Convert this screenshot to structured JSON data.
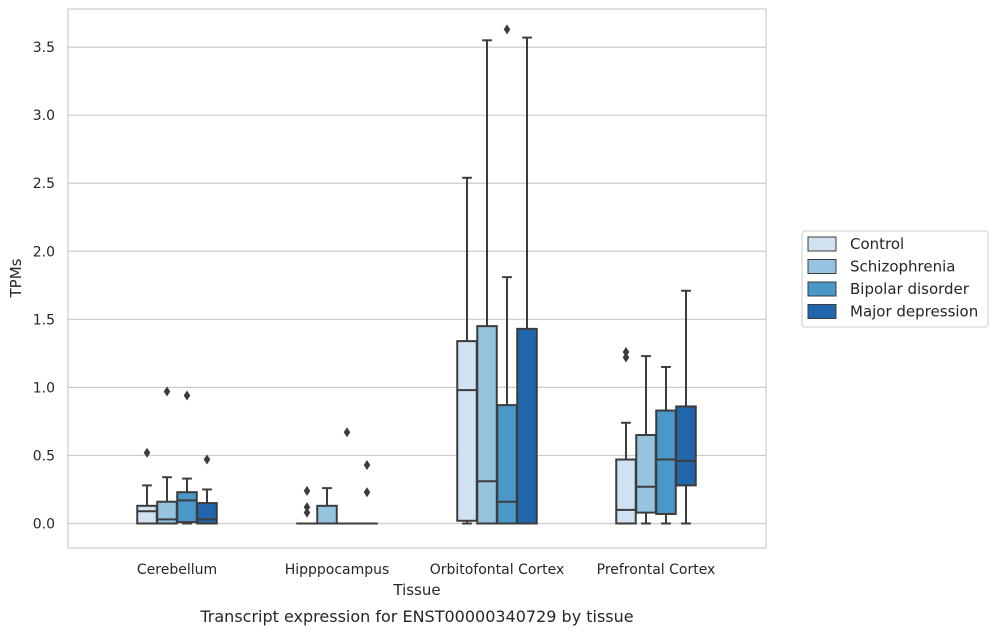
{
  "chart_data": {
    "type": "boxplot",
    "title": "",
    "caption": "Transcript expression for ENST00000340729 by tissue",
    "xlabel": "Tissue",
    "ylabel": "TPMs",
    "ylim": [
      -0.18,
      3.78
    ],
    "yticks": [
      0.0,
      0.5,
      1.0,
      1.5,
      2.0,
      2.5,
      3.0,
      3.5
    ],
    "ytick_labels": [
      "0.0",
      "0.5",
      "1.0",
      "1.5",
      "2.0",
      "2.5",
      "3.0",
      "3.5"
    ],
    "grid": "horizontal",
    "legend_placement": "right, outside plot",
    "categories": [
      "Cerebellum",
      "Hipppocampus",
      "Orbitofontal Cortex",
      "Prefrontal Cortex"
    ],
    "series": [
      {
        "name": "Control",
        "color": "#d0e1f2",
        "boxes": [
          {
            "min": 0.0,
            "q1": 0.0,
            "median": 0.09,
            "q3": 0.13,
            "max": 0.28,
            "outliers": [
              0.52
            ]
          },
          {
            "min": 0.0,
            "q1": 0.0,
            "median": 0.0,
            "q3": 0.0,
            "max": 0.0,
            "outliers": [
              0.08,
              0.12,
              0.24
            ]
          },
          {
            "min": 0.0,
            "q1": 0.02,
            "median": 0.98,
            "q3": 1.34,
            "max": 2.54,
            "outliers": []
          },
          {
            "min": 0.0,
            "q1": 0.0,
            "median": 0.1,
            "q3": 0.47,
            "max": 0.74,
            "outliers": [
              1.22,
              1.26
            ]
          }
        ]
      },
      {
        "name": "Schizophrenia",
        "color": "#94c4df",
        "boxes": [
          {
            "min": 0.0,
            "q1": 0.0,
            "median": 0.03,
            "q3": 0.16,
            "max": 0.34,
            "outliers": [
              0.97
            ]
          },
          {
            "min": 0.0,
            "q1": 0.0,
            "median": 0.0,
            "q3": 0.13,
            "max": 0.26,
            "outliers": []
          },
          {
            "min": 0.0,
            "q1": 0.0,
            "median": 0.31,
            "q3": 1.45,
            "max": 3.55,
            "outliers": []
          },
          {
            "min": 0.0,
            "q1": 0.08,
            "median": 0.27,
            "q3": 0.65,
            "max": 1.23,
            "outliers": []
          }
        ]
      },
      {
        "name": "Bipolar disorder",
        "color": "#4a98c9",
        "boxes": [
          {
            "min": 0.0,
            "q1": 0.01,
            "median": 0.17,
            "q3": 0.23,
            "max": 0.33,
            "outliers": [
              0.94
            ]
          },
          {
            "min": 0.0,
            "q1": 0.0,
            "median": 0.0,
            "q3": 0.0,
            "max": 0.0,
            "outliers": [
              0.67
            ]
          },
          {
            "min": 0.0,
            "q1": 0.0,
            "median": 0.16,
            "q3": 0.87,
            "max": 1.81,
            "outliers": [
              3.63
            ]
          },
          {
            "min": 0.0,
            "q1": 0.07,
            "median": 0.47,
            "q3": 0.83,
            "max": 1.15,
            "outliers": []
          }
        ]
      },
      {
        "name": "Major depression",
        "color": "#2166ac",
        "boxes": [
          {
            "min": 0.0,
            "q1": 0.0,
            "median": 0.03,
            "q3": 0.15,
            "max": 0.25,
            "outliers": [
              0.47
            ]
          },
          {
            "min": 0.0,
            "q1": 0.0,
            "median": 0.0,
            "q3": 0.0,
            "max": 0.0,
            "outliers": [
              0.23,
              0.43
            ]
          },
          {
            "min": 0.0,
            "q1": 0.0,
            "median": 0.0,
            "q3": 1.43,
            "max": 3.57,
            "outliers": []
          },
          {
            "min": 0.0,
            "q1": 0.28,
            "median": 0.46,
            "q3": 0.86,
            "max": 1.71,
            "outliers": []
          }
        ]
      }
    ]
  }
}
